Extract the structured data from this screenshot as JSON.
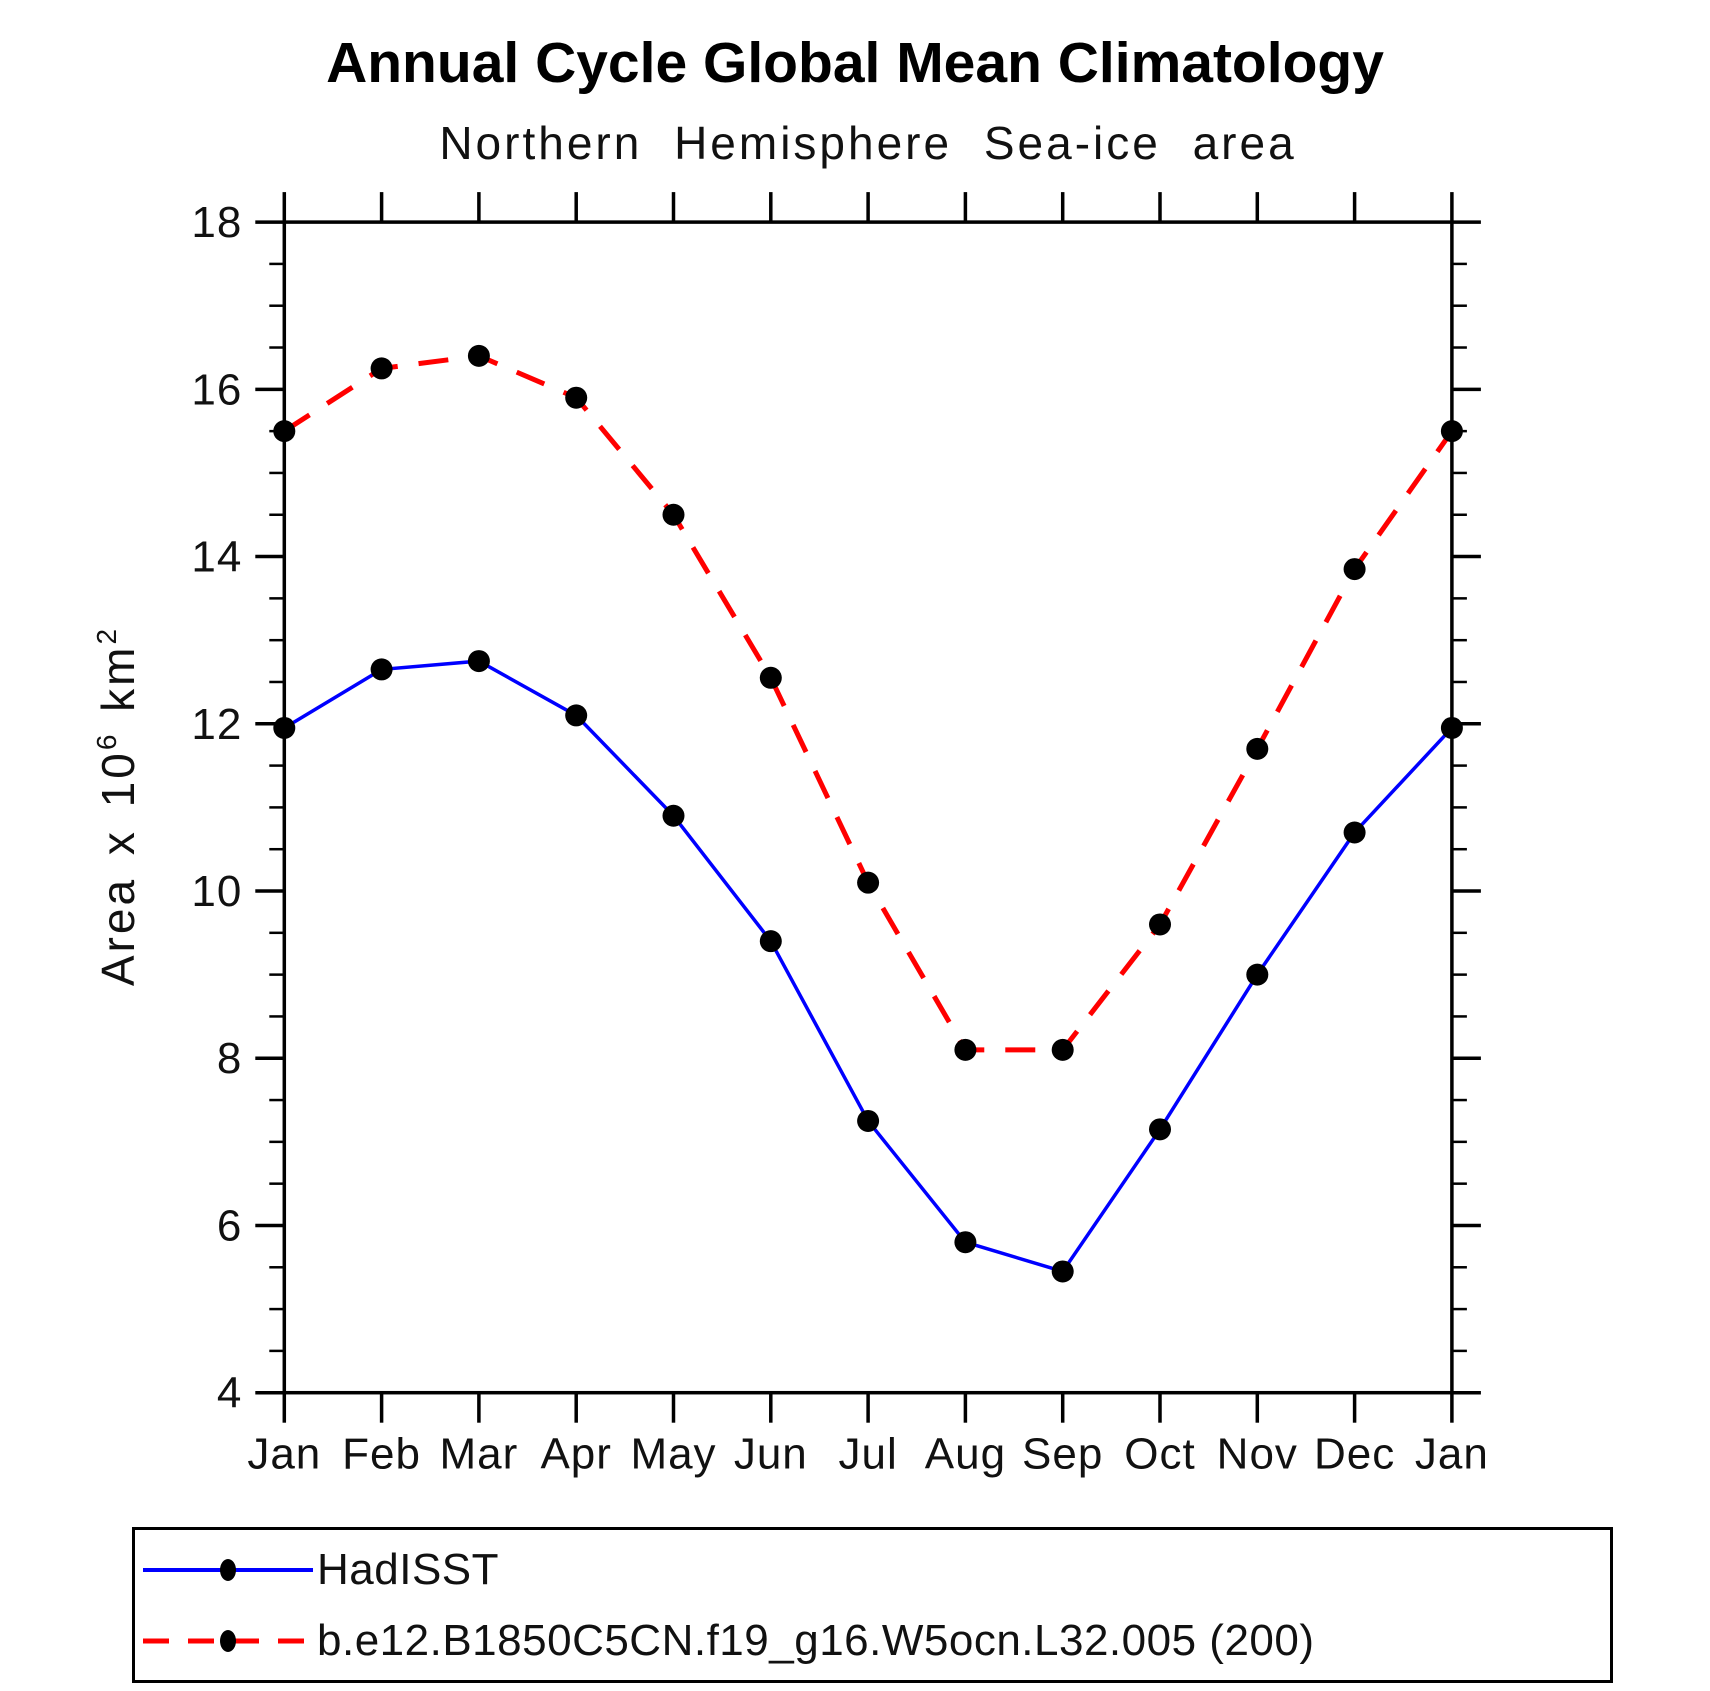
{
  "title": "Annual Cycle Global Mean Climatology",
  "subtitle": "Northern Hemisphere Sea-ice area",
  "labels": {
    "ylabel": {
      "text1": "Area x 10",
      "sup1": "6",
      "text2": " km",
      "sup2": "2"
    }
  },
  "chart_data": {
    "type": "line",
    "title": "Annual Cycle Global Mean Climatology",
    "subtitle": "Northern Hemisphere Sea-ice area",
    "ylabel": "Area x 10^6 km^2",
    "x_categories": [
      "Jan",
      "Feb",
      "Mar",
      "Apr",
      "May",
      "Jun",
      "Jul",
      "Aug",
      "Sep",
      "Oct",
      "Nov",
      "Dec",
      "Jan"
    ],
    "ylim": [
      4,
      18
    ],
    "ytick_major": [
      4,
      6,
      8,
      10,
      12,
      14,
      16,
      18
    ],
    "ytick_minor_step": 0.5,
    "grid": false,
    "legend_position": "bottom",
    "marker": {
      "shape": "circle",
      "color": "#000000"
    },
    "series": [
      {
        "name": "HadISST",
        "color": "#0000ff",
        "style": "solid",
        "values": [
          11.95,
          12.65,
          12.75,
          12.1,
          10.9,
          9.4,
          7.25,
          5.8,
          5.45,
          7.15,
          9.0,
          10.7,
          11.95
        ]
      },
      {
        "name": "b.e12.B1850C5CN.f19_g16.W5ocn.L32.005 (200)",
        "color": "#ff0000",
        "style": "dashed",
        "values": [
          15.5,
          16.25,
          16.4,
          15.9,
          14.5,
          12.55,
          10.1,
          8.1,
          8.1,
          9.6,
          11.7,
          13.85,
          15.5
        ]
      }
    ]
  }
}
